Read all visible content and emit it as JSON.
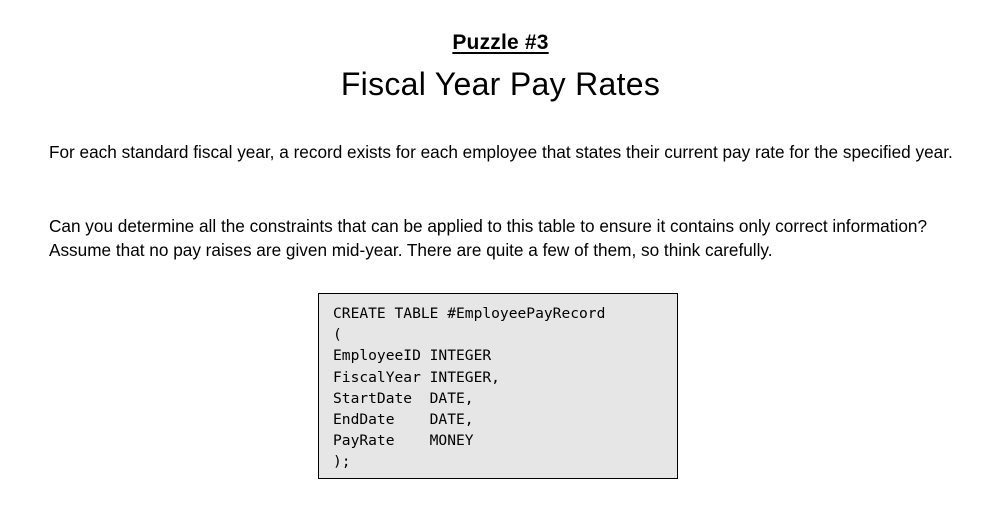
{
  "header": {
    "puzzle_label": "Puzzle #3",
    "title": "Fiscal Year Pay Rates"
  },
  "body": {
    "paragraph_1": "For each standard fiscal year, a record exists for each employee that states their current pay rate for the specified year.",
    "paragraph_2": "Can you determine all the constraints that can be applied to this table to ensure it contains only correct information?  Assume that no pay raises are given mid-year.  There are quite a few of them, so think carefully."
  },
  "code": {
    "lines": [
      "CREATE TABLE #EmployeePayRecord",
      "(",
      "EmployeeID INTEGER",
      "FiscalYear INTEGER,",
      "StartDate  DATE,",
      "EndDate    DATE,",
      "PayRate    MONEY",
      ");"
    ],
    "background_color": "#e6e6e6"
  }
}
